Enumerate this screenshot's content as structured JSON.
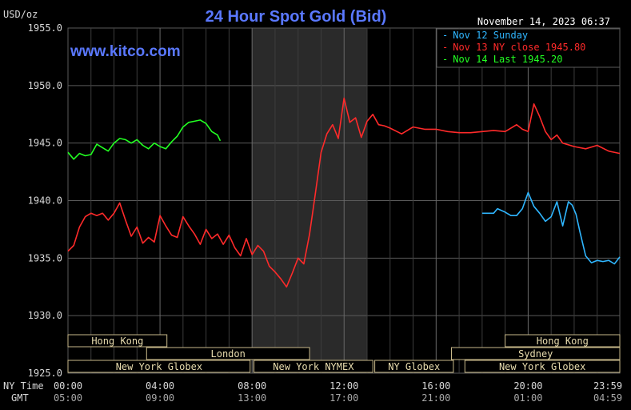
{
  "header": {
    "title": "24 Hour Spot Gold (Bid)",
    "unit": "USD/oz",
    "timestamp": "November 14, 2023 06:37",
    "watermark": "www.kitco.com"
  },
  "legend": {
    "items": [
      {
        "label": "Nov 12 Sunday",
        "color": "#2fb6ff"
      },
      {
        "label": "Nov 13 NY close 1945.80",
        "color": "#ff2a2a"
      },
      {
        "label": "Nov 14 Last 1945.20",
        "color": "#22ff22"
      }
    ]
  },
  "axis": {
    "ny_time_label": "NY Time",
    "gmt_label": "GMT"
  },
  "colors": {
    "background": "#000000",
    "grid": "#5a5a5a",
    "axis_text": "#d9d9d9",
    "title": "#5a78ff",
    "watermark": "#5a78ff",
    "session_fill": "#2a2a2a",
    "band_border": "#c8b98a"
  },
  "chart_data": {
    "type": "line",
    "title": "24 Hour Spot Gold (Bid)",
    "ylabel": "USD/oz",
    "ylim": [
      1925,
      1955
    ],
    "yticks": [
      1925.0,
      1930.0,
      1935.0,
      1940.0,
      1945.0,
      1950.0,
      1955.0
    ],
    "ytick_labels": [
      "1925.0",
      "1930.0",
      "1935.0",
      "1940.0",
      "1945.0",
      "1950.0",
      "1955.0"
    ],
    "xlim": [
      0,
      1439
    ],
    "xticks": [
      0,
      240,
      480,
      720,
      960,
      1200,
      1439
    ],
    "xtick_labels_ny": [
      "00:00",
      "04:00",
      "08:00",
      "12:00",
      "16:00",
      "20:00",
      "23:59"
    ],
    "xtick_labels_gmt": [
      "05:00",
      "09:00",
      "13:00",
      "17:00",
      "21:00",
      "01:00",
      "04:59"
    ],
    "x_unit": "minutes after 00:00 NY time",
    "shaded_range": [
      480,
      780
    ],
    "grid": true,
    "legend_position": "top-right",
    "sessions": [
      {
        "label": "Hong Kong",
        "row": 0,
        "start": 0,
        "end": 258
      },
      {
        "label": "Hong Kong",
        "row": 0,
        "start": 1140,
        "end": 1439
      },
      {
        "label": "London",
        "row": 1,
        "start": 205,
        "end": 630
      },
      {
        "label": "Sydney",
        "row": 1,
        "start": 1000,
        "end": 1439
      },
      {
        "label": "New York Globex",
        "row": 2,
        "start": 0,
        "end": 475
      },
      {
        "label": "New York NYMEX",
        "row": 2,
        "start": 485,
        "end": 795
      },
      {
        "label": "NY Globex",
        "row": 2,
        "start": 800,
        "end": 1005
      },
      {
        "label": "New York Globex",
        "row": 2,
        "start": 1035,
        "end": 1439
      }
    ],
    "series": [
      {
        "name": "Nov 12 Sunday",
        "color": "#2fb6ff",
        "x": [
          1080,
          1110,
          1120,
          1140,
          1155,
          1170,
          1185,
          1200,
          1215,
          1230,
          1245,
          1260,
          1275,
          1290,
          1305,
          1315,
          1325,
          1335,
          1350,
          1365,
          1380,
          1395,
          1410,
          1425,
          1439
        ],
        "y": [
          1938.9,
          1938.9,
          1939.3,
          1939.0,
          1938.7,
          1938.7,
          1939.3,
          1940.7,
          1939.5,
          1938.9,
          1938.2,
          1938.6,
          1939.9,
          1937.8,
          1939.9,
          1939.6,
          1938.8,
          1937.3,
          1935.2,
          1934.6,
          1934.8,
          1934.7,
          1934.8,
          1934.5,
          1935.1
        ]
      },
      {
        "name": "Nov 13 NY close 1945.80",
        "color": "#ff2a2a",
        "x": [
          0,
          15,
          30,
          45,
          60,
          75,
          90,
          105,
          120,
          135,
          150,
          165,
          180,
          195,
          210,
          225,
          240,
          255,
          270,
          285,
          300,
          315,
          330,
          345,
          360,
          375,
          390,
          405,
          420,
          435,
          450,
          465,
          480,
          495,
          510,
          525,
          540,
          555,
          570,
          585,
          600,
          615,
          630,
          645,
          660,
          675,
          690,
          705,
          720,
          735,
          750,
          765,
          780,
          795,
          810,
          825,
          840,
          870,
          900,
          930,
          960,
          990,
          1020,
          1050,
          1080,
          1110,
          1140,
          1170,
          1185,
          1200,
          1215,
          1230,
          1245,
          1260,
          1275,
          1290,
          1320,
          1350,
          1380,
          1410,
          1439
        ],
        "y": [
          1935.6,
          1936.1,
          1937.7,
          1938.6,
          1938.9,
          1938.7,
          1938.9,
          1938.3,
          1938.9,
          1939.8,
          1938.3,
          1936.9,
          1937.7,
          1936.3,
          1936.8,
          1936.4,
          1938.7,
          1937.8,
          1937.0,
          1936.8,
          1938.6,
          1937.8,
          1937.1,
          1936.2,
          1937.5,
          1936.7,
          1937.1,
          1936.2,
          1937.0,
          1935.9,
          1935.2,
          1936.7,
          1935.3,
          1936.1,
          1935.6,
          1934.3,
          1933.8,
          1933.2,
          1932.5,
          1933.7,
          1935.0,
          1934.5,
          1937.1,
          1940.6,
          1944.2,
          1945.8,
          1946.6,
          1945.4,
          1948.9,
          1946.8,
          1947.2,
          1945.5,
          1946.9,
          1947.5,
          1946.6,
          1946.5,
          1946.3,
          1945.8,
          1946.4,
          1946.2,
          1946.2,
          1946.0,
          1945.9,
          1945.9,
          1946.0,
          1946.1,
          1946.0,
          1946.6,
          1946.2,
          1946.0,
          1948.4,
          1947.3,
          1946.0,
          1945.3,
          1945.7,
          1945.0,
          1944.7,
          1944.5,
          1944.8,
          1944.3,
          1944.1
        ]
      },
      {
        "name": "Nov 14 Last 1945.20",
        "color": "#22ff22",
        "x": [
          0,
          15,
          30,
          45,
          60,
          75,
          90,
          105,
          120,
          135,
          150,
          165,
          180,
          195,
          210,
          225,
          240,
          255,
          270,
          285,
          300,
          315,
          330,
          345,
          360,
          375,
          390,
          397
        ],
        "y": [
          1944.2,
          1943.6,
          1944.1,
          1943.9,
          1944.0,
          1944.9,
          1944.6,
          1944.3,
          1945.0,
          1945.4,
          1945.3,
          1945.0,
          1945.3,
          1944.8,
          1944.5,
          1945.0,
          1944.7,
          1944.5,
          1945.1,
          1945.6,
          1946.4,
          1946.8,
          1946.9,
          1947.0,
          1946.7,
          1946.0,
          1945.7,
          1945.2
        ]
      }
    ]
  }
}
